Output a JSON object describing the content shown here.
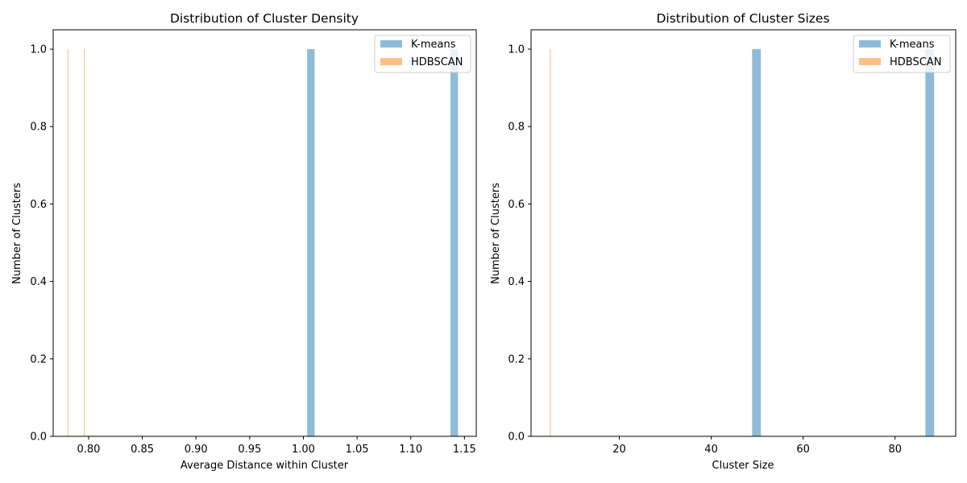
{
  "chart_data": [
    {
      "type": "bar",
      "title": "Distribution of Cluster Density",
      "xlabel": "Average Distance within Cluster",
      "ylabel": "Number of Clusters",
      "xlim": [
        0.767,
        1.161
      ],
      "ylim": [
        0,
        1.05
      ],
      "xticks": [
        "0.80",
        "0.85",
        "0.90",
        "0.95",
        "1.00",
        "1.05",
        "1.10",
        "1.15"
      ],
      "xtick_values": [
        0.8,
        0.85,
        0.9,
        0.95,
        1.0,
        1.05,
        1.1,
        1.15
      ],
      "yticks": [
        "0.0",
        "0.2",
        "0.4",
        "0.6",
        "0.8",
        "1.0"
      ],
      "ytick_values": [
        0,
        0.2,
        0.4,
        0.6,
        0.8,
        1.0
      ],
      "grid": false,
      "legend": "upper right",
      "series": [
        {
          "name": "K-means",
          "color": "#1f77b4",
          "opacity": 0.5,
          "bars": [
            {
              "x0": 1.0035,
              "x1": 1.0105,
              "height": 1
            },
            {
              "x0": 1.137,
              "x1": 1.144,
              "height": 1
            }
          ]
        },
        {
          "name": "HDBSCAN",
          "color": "#ff7f0e",
          "opacity": 0.5,
          "bars": [
            {
              "x0": 0.7803,
              "x1": 0.7811,
              "height": 1
            },
            {
              "x0": 0.7955,
              "x1": 0.7963,
              "height": 1
            }
          ]
        }
      ]
    },
    {
      "type": "bar",
      "title": "Distribution of Cluster Sizes",
      "xlabel": "Cluster Size",
      "ylabel": "Number of Clusters",
      "xlim": [
        0.8,
        93.2
      ],
      "ylim": [
        0,
        1.05
      ],
      "xticks": [
        "20",
        "40",
        "60",
        "80"
      ],
      "xtick_values": [
        20,
        40,
        60,
        80
      ],
      "yticks": [
        "0.0",
        "0.2",
        "0.4",
        "0.6",
        "0.8",
        "1.0"
      ],
      "ytick_values": [
        0,
        0.2,
        0.4,
        0.6,
        0.8,
        1.0
      ],
      "grid": false,
      "legend": "upper right",
      "series": [
        {
          "name": "K-means",
          "color": "#1f77b4",
          "opacity": 0.5,
          "bars": [
            {
              "x0": 48.9,
              "x1": 50.8,
              "height": 1
            },
            {
              "x0": 86.6,
              "x1": 88.5,
              "height": 1
            }
          ]
        },
        {
          "name": "HDBSCAN",
          "color": "#ff7f0e",
          "opacity": 0.5,
          "bars": [
            {
              "x0": 4.9,
              "x1": 5.1,
              "height": 1
            }
          ]
        }
      ]
    }
  ]
}
